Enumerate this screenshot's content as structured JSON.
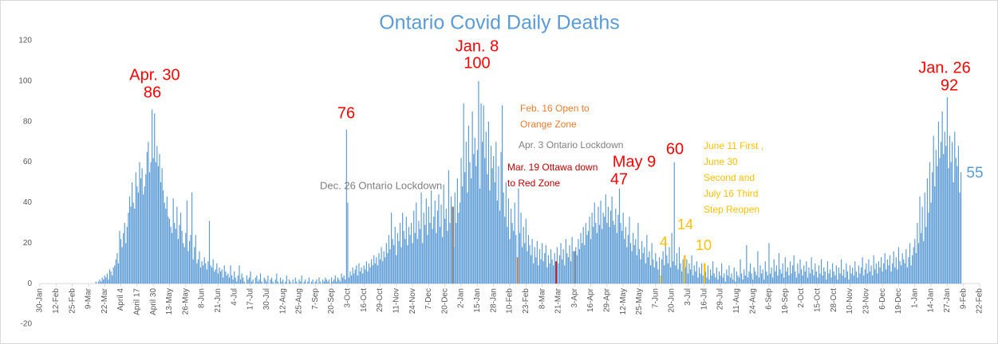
{
  "chart_data": {
    "type": "bar",
    "title": "Ontario Covid Daily Deaths",
    "color": "#5b9bd5",
    "ylim": [
      -20,
      120
    ],
    "yticks": [
      -20,
      0,
      20,
      40,
      60,
      80,
      100,
      120
    ],
    "grid": false,
    "xlim": [
      0,
      754
    ],
    "xticks": [
      {
        "value": 0,
        "label": "30-Jan"
      },
      {
        "value": 13,
        "label": "12-Feb"
      },
      {
        "value": 26,
        "label": "25-Feb"
      },
      {
        "value": 39,
        "label": "9-Mar"
      },
      {
        "value": 52,
        "label": "22-Mar"
      },
      {
        "value": 65,
        "label": "April 4"
      },
      {
        "value": 78,
        "label": "April 17"
      },
      {
        "value": 91,
        "label": "April 30"
      },
      {
        "value": 104,
        "label": "13-May"
      },
      {
        "value": 117,
        "label": "26-May"
      },
      {
        "value": 130,
        "label": "8-Jun"
      },
      {
        "value": 143,
        "label": "21-Jun"
      },
      {
        "value": 156,
        "label": "4-Jul"
      },
      {
        "value": 169,
        "label": "17-Jul"
      },
      {
        "value": 182,
        "label": "30-Jul"
      },
      {
        "value": 195,
        "label": "12-Aug"
      },
      {
        "value": 208,
        "label": "25-Aug"
      },
      {
        "value": 221,
        "label": "7-Sep"
      },
      {
        "value": 234,
        "label": "20-Sep"
      },
      {
        "value": 247,
        "label": "3-Oct"
      },
      {
        "value": 260,
        "label": "16-Oct"
      },
      {
        "value": 273,
        "label": "29-Oct"
      },
      {
        "value": 286,
        "label": "11-Nov"
      },
      {
        "value": 299,
        "label": "24-Nov"
      },
      {
        "value": 312,
        "label": "7-Dec"
      },
      {
        "value": 325,
        "label": "20-Dec"
      },
      {
        "value": 338,
        "label": "2-Jan"
      },
      {
        "value": 351,
        "label": "15-Jan"
      },
      {
        "value": 364,
        "label": "28-Jan"
      },
      {
        "value": 377,
        "label": "10-Feb"
      },
      {
        "value": 390,
        "label": "23-Feb"
      },
      {
        "value": 403,
        "label": "8-Mar"
      },
      {
        "value": 416,
        "label": "21-Mar"
      },
      {
        "value": 429,
        "label": "3-Apr"
      },
      {
        "value": 442,
        "label": "16-Apr"
      },
      {
        "value": 455,
        "label": "29-Apr"
      },
      {
        "value": 468,
        "label": "12-May"
      },
      {
        "value": 481,
        "label": "25-May"
      },
      {
        "value": 494,
        "label": "7-Jun"
      },
      {
        "value": 507,
        "label": "20-Jun"
      },
      {
        "value": 520,
        "label": "3-Jul"
      },
      {
        "value": 533,
        "label": "16-Jul"
      },
      {
        "value": 546,
        "label": "29-Jul"
      },
      {
        "value": 559,
        "label": "11-Aug"
      },
      {
        "value": 572,
        "label": "24-Aug"
      },
      {
        "value": 585,
        "label": "6-Sep"
      },
      {
        "value": 598,
        "label": "19-Sep"
      },
      {
        "value": 611,
        "label": "2-Oct"
      },
      {
        "value": 624,
        "label": "15-Oct"
      },
      {
        "value": 637,
        "label": "28-Oct"
      },
      {
        "value": 650,
        "label": "10-Nov"
      },
      {
        "value": 663,
        "label": "23-Nov"
      },
      {
        "value": 676,
        "label": "6-Dec"
      },
      {
        "value": 689,
        "label": "19-Dec"
      },
      {
        "value": 702,
        "label": "1-Jan"
      },
      {
        "value": 715,
        "label": "14-Jan"
      },
      {
        "value": 728,
        "label": "27-Jan"
      },
      {
        "value": 741,
        "label": "9-Feb"
      },
      {
        "value": 754,
        "label": "22-Feb"
      }
    ],
    "values": [
      0,
      0,
      0,
      0,
      0,
      0,
      0,
      0,
      0,
      0,
      0,
      0,
      0,
      0,
      0,
      0,
      0,
      0,
      0,
      0,
      0,
      0,
      0,
      0,
      0,
      0,
      0,
      0,
      0,
      0,
      0,
      0,
      0,
      0,
      0,
      0,
      0,
      0,
      0,
      0,
      0,
      0,
      0,
      0,
      0,
      1,
      0,
      1,
      2,
      1,
      3,
      2,
      4,
      3,
      5,
      2,
      7,
      6,
      4,
      8,
      9,
      12,
      15,
      10,
      26,
      22,
      18,
      25,
      30,
      20,
      28,
      35,
      43,
      38,
      50,
      40,
      37,
      55,
      48,
      45,
      60,
      52,
      57,
      44,
      48,
      54,
      65,
      70,
      55,
      60,
      86,
      62,
      84,
      60,
      68,
      58,
      64,
      50,
      57,
      46,
      40,
      37,
      43,
      33,
      32,
      28,
      25,
      42,
      30,
      27,
      38,
      22,
      29,
      35,
      26,
      20,
      18,
      25,
      41,
      16,
      21,
      24,
      45,
      12,
      18,
      24,
      10,
      12,
      16,
      8,
      11,
      9,
      13,
      10,
      7,
      11,
      31,
      9,
      8,
      12,
      6,
      7,
      10,
      5,
      8,
      6,
      7,
      3,
      9,
      6,
      4,
      5,
      3,
      9,
      4,
      2,
      6,
      3,
      1,
      4,
      9,
      2,
      5,
      3,
      1,
      0,
      4,
      2,
      3,
      6,
      1,
      2,
      0,
      3,
      4,
      1,
      2,
      5,
      1,
      0,
      3,
      2,
      1,
      4,
      0,
      2,
      3,
      1,
      0,
      2,
      5,
      1,
      0,
      3,
      1,
      2,
      0,
      1,
      4,
      0,
      2,
      1,
      0,
      2,
      0,
      3,
      1,
      0,
      2,
      1,
      4,
      0,
      1,
      2,
      0,
      1,
      3,
      0,
      1,
      2,
      0,
      1,
      2,
      0,
      3,
      1,
      0,
      2,
      1,
      3,
      2,
      1,
      2,
      0,
      3,
      1,
      2,
      4,
      1,
      3,
      2,
      1,
      5,
      3,
      4,
      2,
      76,
      40,
      3,
      6,
      4,
      8,
      5,
      7,
      9,
      4,
      10,
      6,
      8,
      5,
      9,
      7,
      11,
      6,
      10,
      8,
      12,
      9,
      14,
      10,
      13,
      9,
      15,
      12,
      18,
      11,
      16,
      13,
      20,
      15,
      24,
      17,
      35,
      22,
      19,
      28,
      14,
      25,
      21,
      30,
      18,
      35,
      26,
      22,
      33,
      19,
      28,
      24,
      30,
      20,
      36,
      25,
      40,
      22,
      31,
      27,
      45,
      20,
      35,
      29,
      42,
      24,
      38,
      30,
      46,
      27,
      33,
      41,
      25,
      36,
      44,
      28,
      39,
      23,
      49,
      32,
      37,
      26,
      56,
      30,
      43,
      38,
      18,
      45,
      30,
      52,
      35,
      40,
      62,
      48,
      89,
      55,
      70,
      45,
      78,
      60,
      52,
      85,
      64,
      72,
      58,
      66,
      100,
      47,
      89,
      70,
      88,
      62,
      75,
      54,
      80,
      46,
      68,
      57,
      63,
      50,
      70,
      41,
      58,
      36,
      65,
      88,
      45,
      33,
      50,
      28,
      42,
      22,
      37,
      30,
      26,
      40,
      24,
      13,
      47,
      25,
      35,
      18,
      28,
      20,
      32,
      16,
      24,
      19,
      14,
      22,
      10,
      18,
      13,
      21,
      9,
      17,
      12,
      20,
      11,
      15,
      19,
      8,
      14,
      10,
      17,
      12,
      9,
      15,
      11,
      18,
      10,
      14,
      20,
      12,
      17,
      9,
      22,
      15,
      13,
      19,
      11,
      23,
      16,
      16,
      18,
      14,
      22,
      17,
      25,
      20,
      28,
      19,
      30,
      24,
      26,
      33,
      22,
      35,
      28,
      40,
      30,
      25,
      38,
      29,
      41,
      27,
      35,
      33,
      44,
      30,
      38,
      28,
      36,
      43,
      31,
      29,
      37,
      25,
      34,
      47,
      30,
      26,
      35,
      22,
      28,
      18,
      24,
      33,
      20,
      16,
      25,
      19,
      22,
      14,
      30,
      17,
      12,
      21,
      15,
      18,
      10,
      24,
      13,
      16,
      9,
      20,
      12,
      8,
      15,
      11,
      7,
      13,
      4,
      12,
      16,
      9,
      22,
      14,
      10,
      18,
      8,
      25,
      11,
      60,
      9,
      15,
      7,
      18,
      10,
      6,
      12,
      14,
      8,
      12,
      5,
      10,
      7,
      14,
      4,
      9,
      6,
      11,
      3,
      8,
      5,
      10,
      4,
      10,
      6,
      3,
      9,
      2,
      7,
      4,
      11,
      5,
      3,
      8,
      2,
      6,
      4,
      10,
      3,
      5,
      1,
      7,
      4,
      9,
      3,
      5,
      2,
      8,
      1,
      6,
      4,
      3,
      12,
      5,
      2,
      7,
      4,
      19,
      3,
      6,
      10,
      5,
      2,
      8,
      6,
      4,
      16,
      3,
      9,
      5,
      7,
      2,
      11,
      6,
      4,
      20,
      5,
      8,
      3,
      12,
      6,
      9,
      4,
      15,
      7,
      5,
      10,
      3,
      13,
      6,
      8,
      4,
      11,
      5,
      9,
      14,
      6,
      3,
      10,
      5,
      12,
      7,
      4,
      9,
      6,
      11,
      3,
      8,
      5,
      13,
      7,
      4,
      10,
      6,
      3,
      9,
      5,
      12,
      4,
      8,
      6,
      2,
      11,
      5,
      7,
      3,
      10,
      6,
      4,
      9,
      2,
      8,
      5,
      12,
      4,
      7,
      3,
      10,
      6,
      2,
      9,
      5,
      8,
      4,
      11,
      6,
      3,
      9,
      5,
      8,
      13,
      4,
      7,
      10,
      5,
      12,
      6,
      9,
      4,
      14,
      7,
      10,
      5,
      11,
      8,
      13,
      6,
      10,
      15,
      7,
      12,
      9,
      14,
      6,
      10,
      16,
      8,
      13,
      7,
      18,
      11,
      9,
      15,
      12,
      10,
      17,
      8,
      13,
      20,
      9,
      14,
      18,
      22,
      15,
      30,
      20,
      43,
      25,
      38,
      21,
      45,
      28,
      52,
      35,
      60,
      40,
      55,
      73,
      48,
      66,
      58,
      80,
      62,
      70,
      85,
      64,
      75,
      68,
      92,
      57,
      73,
      60,
      70,
      50,
      75,
      62,
      58,
      68,
      45,
      55
    ],
    "point_labels": [
      {
        "date": "Apr. 30",
        "index": 90,
        "color": "#ff0000"
      },
      {
        "date": "Jan. 8",
        "index": 352,
        "color": "#ff0000"
      },
      {
        "date": "Jan. 26",
        "index": 728,
        "color": "#ff0000"
      },
      {
        "index": 246,
        "color": "#ff0000"
      },
      {
        "date": "May 9",
        "index": 465,
        "color": "#ff0000"
      },
      {
        "index": 509,
        "color": "#ff0000"
      },
      {
        "index": 498,
        "color": "#ffc000"
      },
      {
        "index": 517,
        "color": "#ffc000"
      },
      {
        "index": 533,
        "color": "#ffc000"
      },
      {
        "index": 739,
        "color": "#5b9bd5"
      }
    ],
    "annotations": [
      {
        "lines": [
          "Dec. 26 Ontario Lockdown"
        ],
        "indices": [
          331
        ],
        "color": "#7f7f7f"
      },
      {
        "lines": [
          "Feb. 16 Open to",
          "Orange Zone"
        ],
        "indices": [
          383
        ],
        "color": "#ed7d31"
      },
      {
        "lines": [
          "Apr. 3 Ontario Lockdown"
        ],
        "indices": [
          429
        ],
        "color": "#7f7f7f"
      },
      {
        "lines": [
          "Mar. 19 Ottawa down",
          "to Red Zone"
        ],
        "indices": [
          414
        ],
        "color": "#c00000"
      },
      {
        "lines": [
          "June 11 First ,",
          "June 30",
          "Second and",
          "July 16 Third",
          "Step Reopen"
        ],
        "indices": [
          498,
          517,
          533
        ],
        "color": "#ffc000"
      }
    ]
  }
}
